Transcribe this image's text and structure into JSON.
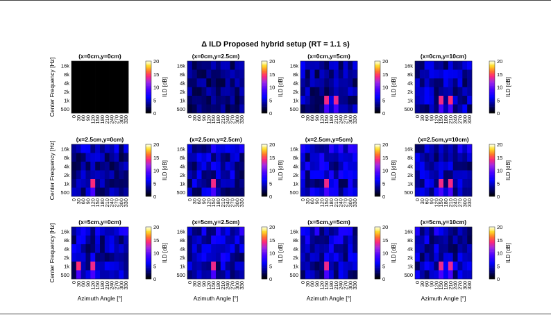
{
  "chart_data": {
    "type": "heatmap",
    "title": "Δ ILD Proposed hybrid setup (RT = 1.1 s)",
    "xlabel": "Azimuth Angle [°]",
    "ylabel": "Center Frequency [Hz]",
    "colorbar_label": "ILD [dB]",
    "colorbar_ticks": [
      "0",
      "5",
      "10",
      "15",
      "20"
    ],
    "clim": [
      0,
      20
    ],
    "colormap": "gnuplot2",
    "x_ticks": [
      "0",
      "30",
      "60",
      "90",
      "120",
      "150",
      "180",
      "210",
      "240",
      "270",
      "300",
      "330"
    ],
    "y_ticks": [
      "16k",
      "8k",
      "4k",
      "2k",
      "1k",
      "500"
    ],
    "panels": [
      {
        "title": "(x=0cm,y=0cm)",
        "hot_cols": [],
        "level": 0.0
      },
      {
        "title": "(x=0cm,y=2.5cm)",
        "hot_cols": [],
        "level": 0.18
      },
      {
        "title": "(x=0cm,y=5cm)",
        "hot_cols": [
          5,
          7
        ],
        "level": 0.22
      },
      {
        "title": "(x=0cm,y=10cm)",
        "hot_cols": [
          5,
          7
        ],
        "level": 0.24
      },
      {
        "title": "(x=2.5cm,y=0cm)",
        "hot_cols": [
          4
        ],
        "level": 0.22
      },
      {
        "title": "(x=2.5cm,y=2.5cm)",
        "hot_cols": [
          5
        ],
        "level": 0.26
      },
      {
        "title": "(x=2.5cm,y=5cm)",
        "hot_cols": [
          5
        ],
        "level": 0.28
      },
      {
        "title": "(x=2.5cm,y=10cm)",
        "hot_cols": [
          5,
          7
        ],
        "level": 0.26
      },
      {
        "title": "(x=5cm,y=0cm)",
        "hot_cols": [
          1,
          4
        ],
        "level": 0.26
      },
      {
        "title": "(x=5cm,y=2.5cm)",
        "hot_cols": [
          5
        ],
        "level": 0.28
      },
      {
        "title": "(x=5cm,y=5cm)",
        "hot_cols": [
          5
        ],
        "level": 0.28
      },
      {
        "title": "(x=5cm,y=10cm)",
        "hot_cols": [
          5,
          7
        ],
        "level": 0.26
      }
    ]
  }
}
